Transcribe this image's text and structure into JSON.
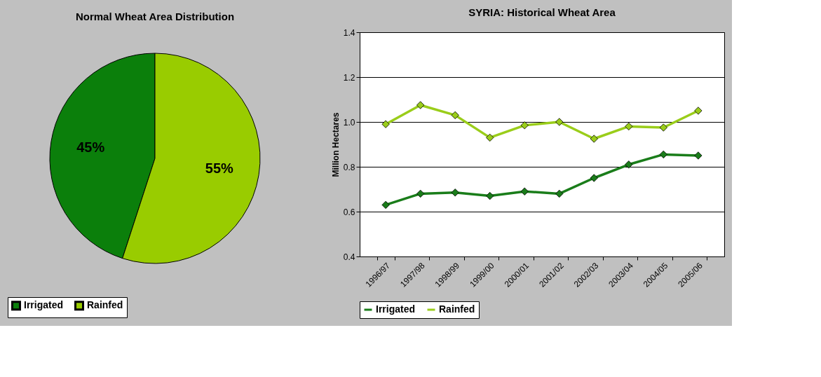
{
  "chart_data": [
    {
      "type": "pie",
      "title": "Normal Wheat Area Distribution",
      "categories": [
        "Irrigated",
        "Rainfed"
      ],
      "values": [
        45,
        55
      ],
      "colors": [
        "#0b7f0b",
        "#99cc00"
      ],
      "value_labels": [
        "45%",
        "55%"
      ],
      "legend": "bottom"
    },
    {
      "type": "line",
      "title": "SYRIA: Historical Wheat Area",
      "ylabel": "Million Hectares",
      "categories": [
        "1996/97",
        "1997/98",
        "1998/99",
        "1999/00",
        "2000/01",
        "2001/02",
        "2002/03",
        "2003/04",
        "2004/05",
        "2005/06"
      ],
      "series": [
        {
          "name": "Irrigated",
          "color": "#1a7d1a",
          "values": [
            0.63,
            0.68,
            0.685,
            0.67,
            0.69,
            0.68,
            0.75,
            0.81,
            0.855,
            0.85
          ]
        },
        {
          "name": "Rainfed",
          "color": "#9acd1a",
          "values": [
            0.99,
            1.075,
            1.03,
            0.93,
            0.985,
            1.0,
            0.925,
            0.98,
            0.975,
            1.05
          ]
        }
      ],
      "ylim": [
        0.4,
        1.4
      ],
      "yticks": [
        0.4,
        0.6,
        0.8,
        {
          "value": 1,
          "label": "1.0"
        },
        1.2,
        1.4
      ],
      "grid": "y",
      "legend": "bottom",
      "marker": "diamond",
      "line_style": "solid"
    }
  ]
}
